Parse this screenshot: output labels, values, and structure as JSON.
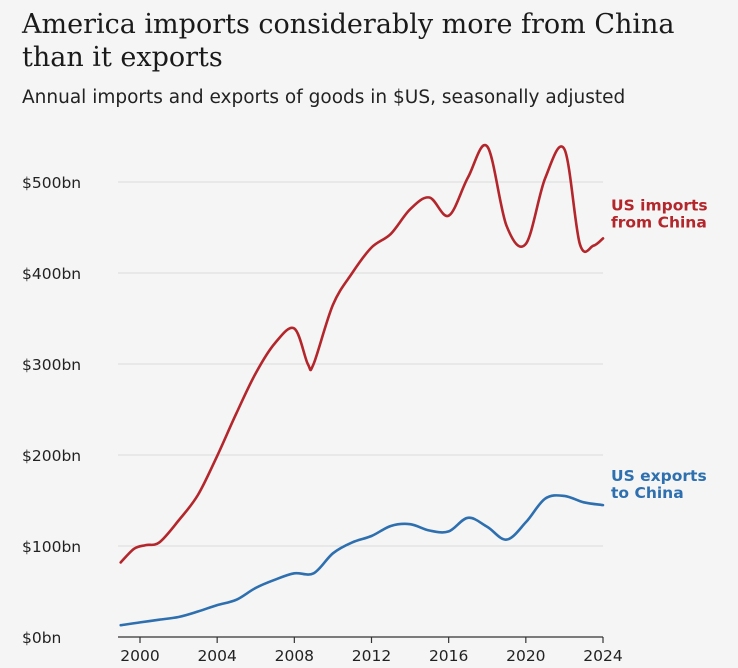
{
  "chart_data": {
    "type": "line",
    "title": "America imports considerably more from China than it exports",
    "subtitle": "Annual imports and exports of goods in $US, seasonally adjusted",
    "xlabel": "",
    "ylabel": "",
    "xlim": [
      1999,
      2024
    ],
    "ylim": [
      0,
      550
    ],
    "x_ticks": [
      {
        "value": 2000,
        "label": "2000"
      },
      {
        "value": 2004,
        "label": "2004"
      },
      {
        "value": 2008,
        "label": "2008"
      },
      {
        "value": 2012,
        "label": "2012"
      },
      {
        "value": 2016,
        "label": "2016"
      },
      {
        "value": 2020,
        "label": "2020"
      },
      {
        "value": 2024,
        "label": "2024"
      }
    ],
    "y_ticks": [
      {
        "value": 0,
        "label": "$0bn"
      },
      {
        "value": 100,
        "label": "$100bn"
      },
      {
        "value": 200,
        "label": "$200bn"
      },
      {
        "value": 300,
        "label": "$300bn"
      },
      {
        "value": 400,
        "label": "$400bn"
      },
      {
        "value": 500,
        "label": "$500bn"
      }
    ],
    "grid": true,
    "series": [
      {
        "name": "US imports from China",
        "label_lines": [
          "US imports",
          "from China"
        ],
        "color": "#b3262b",
        "points": [
          [
            1999,
            82
          ],
          [
            1999.7,
            97
          ],
          [
            2000.3,
            101
          ],
          [
            2001.0,
            104
          ],
          [
            2002.0,
            128
          ],
          [
            2003.0,
            156
          ],
          [
            2004.0,
            199
          ],
          [
            2005.0,
            246
          ],
          [
            2006.0,
            290
          ],
          [
            2007.0,
            323
          ],
          [
            2008.0,
            339
          ],
          [
            2008.7,
            300
          ],
          [
            2009.0,
            300
          ],
          [
            2010.0,
            365
          ],
          [
            2011.0,
            400
          ],
          [
            2012.0,
            428
          ],
          [
            2013.0,
            443
          ],
          [
            2014.0,
            470
          ],
          [
            2015.0,
            483
          ],
          [
            2016.0,
            463
          ],
          [
            2017.0,
            505
          ],
          [
            2018.0,
            539
          ],
          [
            2019.0,
            452
          ],
          [
            2020.0,
            432
          ],
          [
            2021.0,
            504
          ],
          [
            2022.0,
            536
          ],
          [
            2022.8,
            432
          ],
          [
            2023.5,
            430
          ],
          [
            2024.0,
            438
          ]
        ]
      },
      {
        "name": "US exports to China",
        "label_lines": [
          "US exports",
          "to China"
        ],
        "color": "#2d6faf",
        "points": [
          [
            1999,
            13
          ],
          [
            2000.0,
            16
          ],
          [
            2001.0,
            19
          ],
          [
            2002.0,
            22
          ],
          [
            2003.0,
            28
          ],
          [
            2004.0,
            35
          ],
          [
            2005.0,
            41
          ],
          [
            2006.0,
            54
          ],
          [
            2007.0,
            63
          ],
          [
            2008.0,
            70
          ],
          [
            2009.0,
            70
          ],
          [
            2010.0,
            92
          ],
          [
            2011.0,
            104
          ],
          [
            2012.0,
            111
          ],
          [
            2013.0,
            122
          ],
          [
            2014.0,
            124
          ],
          [
            2015.0,
            117
          ],
          [
            2016.0,
            116
          ],
          [
            2017.0,
            131
          ],
          [
            2018.0,
            121
          ],
          [
            2019.0,
            107
          ],
          [
            2020.0,
            126
          ],
          [
            2021.0,
            152
          ],
          [
            2022.0,
            155
          ],
          [
            2023.0,
            148
          ],
          [
            2024.0,
            145
          ]
        ]
      }
    ]
  }
}
